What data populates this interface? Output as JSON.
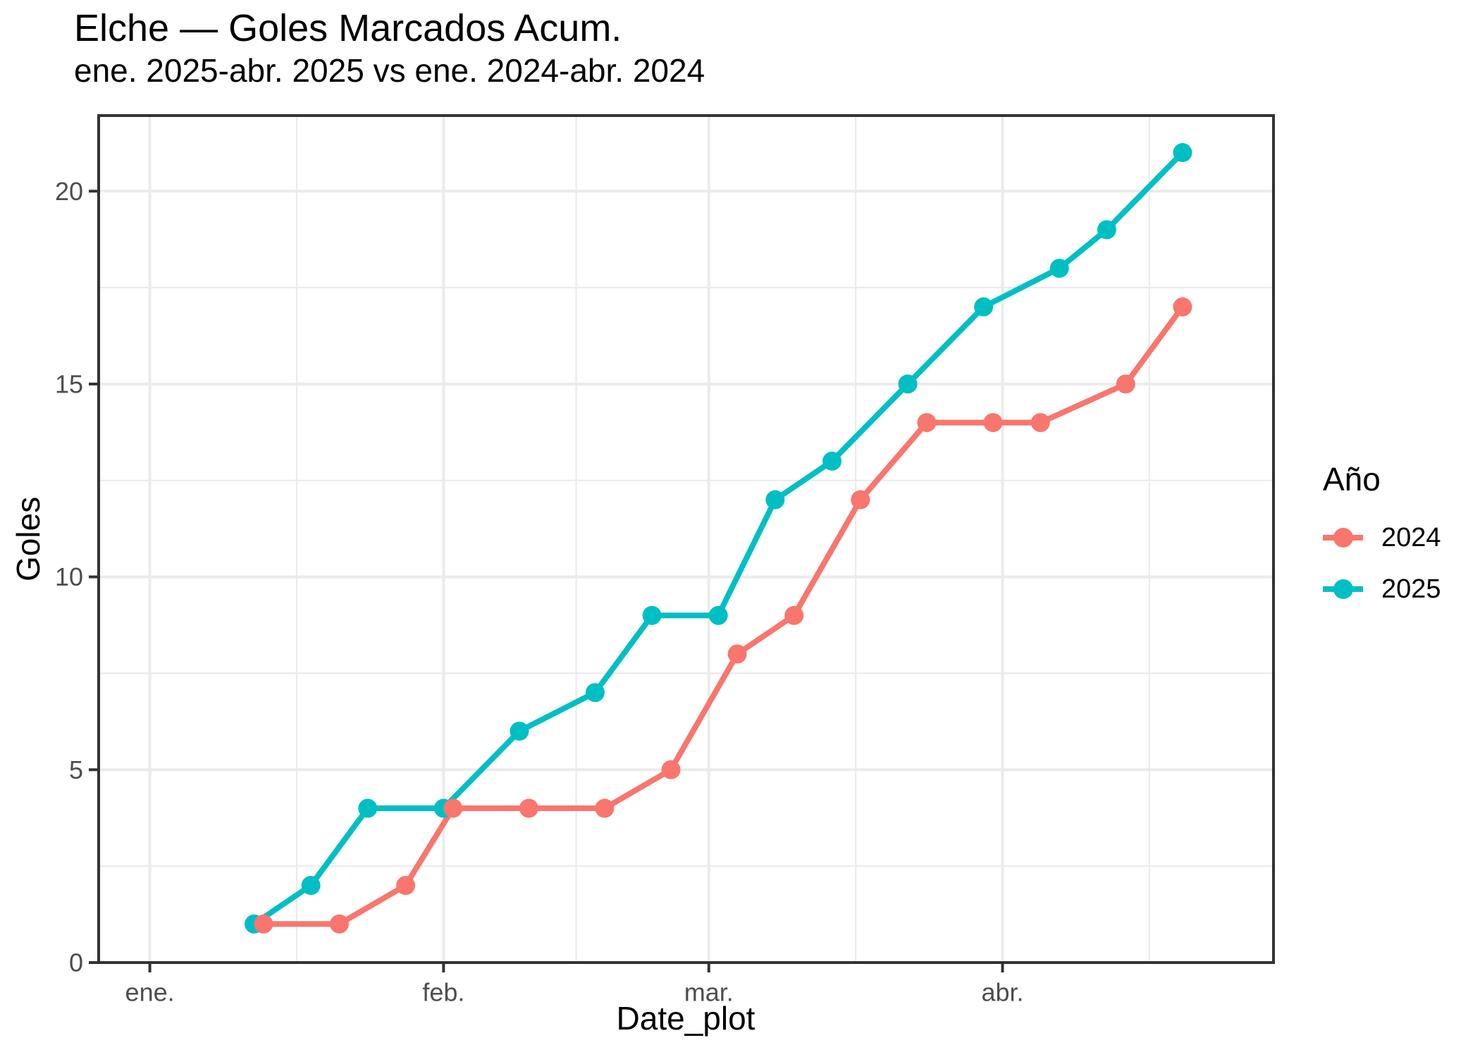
{
  "title": "Elche — Goles Marcados Acum.",
  "subtitle": "ene. 2025-abr. 2025 vs ene. 2024-abr. 2024",
  "axes": {
    "x_title": "Date_plot",
    "y_title": "Goles"
  },
  "legend": {
    "title": "Año",
    "items": [
      {
        "label": "2024",
        "color": "#F8766D"
      },
      {
        "label": "2025",
        "color": "#00BFC4"
      }
    ]
  },
  "colors": {
    "background": "#FFFFFF",
    "grid": "#EBEBEB",
    "panel_border": "#333333",
    "tick": "#333333",
    "axis_text": "#4D4D4D",
    "series_2024": "#F8766D",
    "series_2025": "#00BFC4"
  },
  "chart_data": {
    "type": "line",
    "title": "Elche — Goles Marcados Acum.",
    "subtitle": "ene. 2025-abr. 2025 vs ene. 2024-abr. 2024",
    "xlabel": "Date_plot",
    "ylabel": "Goles",
    "legend_title": "Año",
    "legend_position": "right",
    "grid": "on",
    "x_axis": {
      "note": "date axis, day 0 = 1 de enero",
      "ticks": [
        {
          "label": "ene.",
          "day": 0
        },
        {
          "label": "feb.",
          "day": 31
        },
        {
          "label": "mar.",
          "day": 59
        },
        {
          "label": "abr.",
          "day": 90
        }
      ],
      "minor_days": [
        15.5,
        45,
        74.5,
        105.5
      ],
      "domain_days": [
        -5.4,
        118.6
      ]
    },
    "y_axis": {
      "ticks": [
        0,
        5,
        10,
        15,
        20
      ],
      "minor": [
        2.5,
        7.5,
        12.5,
        17.5
      ],
      "domain": [
        0,
        21.96
      ]
    },
    "series": [
      {
        "name": "2024",
        "color": "#F8766D",
        "points": [
          {
            "date": "2024-01-13",
            "day": 12,
            "goles": 1
          },
          {
            "date": "2024-01-21",
            "day": 20,
            "goles": 1
          },
          {
            "date": "2024-01-28",
            "day": 27,
            "goles": 2
          },
          {
            "date": "2024-02-02",
            "day": 32,
            "goles": 4
          },
          {
            "date": "2024-02-10",
            "day": 40,
            "goles": 4
          },
          {
            "date": "2024-02-18",
            "day": 48,
            "goles": 4
          },
          {
            "date": "2024-02-25",
            "day": 55,
            "goles": 5
          },
          {
            "date": "2024-03-04",
            "day": 62,
            "goles": 8
          },
          {
            "date": "2024-03-10",
            "day": 68,
            "goles": 9
          },
          {
            "date": "2024-03-17",
            "day": 75,
            "goles": 12
          },
          {
            "date": "2024-03-24",
            "day": 82,
            "goles": 14
          },
          {
            "date": "2024-03-31",
            "day": 89,
            "goles": 14
          },
          {
            "date": "2024-04-05",
            "day": 94,
            "goles": 14
          },
          {
            "date": "2024-04-14",
            "day": 103,
            "goles": 15
          },
          {
            "date": "2024-04-20",
            "day": 109,
            "goles": 17
          }
        ]
      },
      {
        "name": "2025",
        "color": "#00BFC4",
        "points": [
          {
            "date": "2025-01-12",
            "day": 11,
            "goles": 1
          },
          {
            "date": "2025-01-18",
            "day": 17,
            "goles": 2
          },
          {
            "date": "2025-01-24",
            "day": 23,
            "goles": 4
          },
          {
            "date": "2025-02-01",
            "day": 31,
            "goles": 4
          },
          {
            "date": "2025-02-09",
            "day": 39,
            "goles": 6
          },
          {
            "date": "2025-02-17",
            "day": 47,
            "goles": 7
          },
          {
            "date": "2025-02-23",
            "day": 53,
            "goles": 9
          },
          {
            "date": "2025-03-02",
            "day": 60,
            "goles": 9
          },
          {
            "date": "2025-03-08",
            "day": 66,
            "goles": 12
          },
          {
            "date": "2025-03-14",
            "day": 72,
            "goles": 13
          },
          {
            "date": "2025-03-22",
            "day": 80,
            "goles": 15
          },
          {
            "date": "2025-03-30",
            "day": 88,
            "goles": 17
          },
          {
            "date": "2025-04-07",
            "day": 96,
            "goles": 18
          },
          {
            "date": "2025-04-12",
            "day": 101,
            "goles": 19
          },
          {
            "date": "2025-04-20",
            "day": 109,
            "goles": 21
          }
        ]
      }
    ]
  }
}
